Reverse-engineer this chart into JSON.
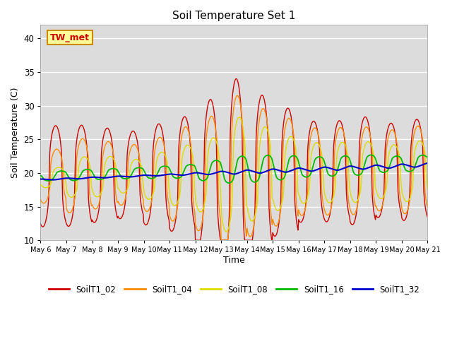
{
  "title": "Soil Temperature Set 1",
  "xlabel": "Time",
  "ylabel": "Soil Temperature (C)",
  "ylim": [
    10,
    42
  ],
  "annotation_text": "TW_met",
  "annotation_box_color": "#FFFF99",
  "annotation_text_color": "#CC0000",
  "annotation_edge_color": "#CC8800",
  "background_color": "#E8E8E8",
  "plot_bg_color": "#DCDCDC",
  "series_colors": {
    "SoilT1_02": "#CC0000",
    "SoilT1_04": "#FF8C00",
    "SoilT1_08": "#DDDD00",
    "SoilT1_16": "#00BB00",
    "SoilT1_32": "#0000CC"
  },
  "x_tick_labels": [
    "May 6",
    "May 7",
    "May 8",
    "May 9",
    "May 10",
    "May 11",
    "May 12",
    "May 13",
    "May 14",
    "May 15",
    "May 16",
    "May 17",
    "May 18",
    "May 19",
    "May 20",
    "May 21"
  ],
  "yticks": [
    10,
    15,
    20,
    25,
    30,
    35,
    40
  ],
  "legend_labels": [
    "SoilT1_02",
    "SoilT1_04",
    "SoilT1_08",
    "SoilT1_16",
    "SoilT1_32"
  ]
}
